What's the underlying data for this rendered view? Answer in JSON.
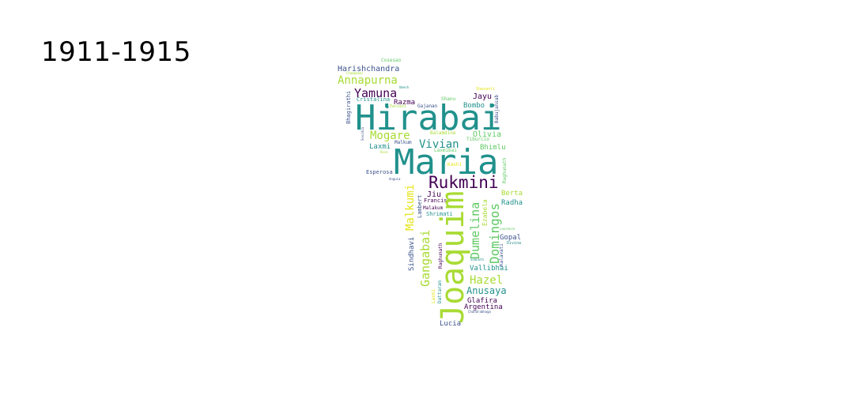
{
  "title": "1911-1915",
  "colors": {
    "dark_purple": "#440154",
    "indigo": "#3b528b",
    "teal": "#21918c",
    "green": "#5ec962",
    "lime": "#a8db34",
    "yellow": "#e5e419"
  },
  "words": [
    {
      "text": "Cosesao",
      "color": "#5ec962"
    },
    {
      "text": "Harishchandra",
      "color": "#3b528b"
    },
    {
      "text": "Champabai",
      "color": "#a8db34"
    },
    {
      "text": "Annapurna",
      "color": "#a8db34"
    },
    {
      "text": "Umesh",
      "color": "#21918c"
    },
    {
      "text": "Yamuna",
      "color": "#440154"
    },
    {
      "text": "Shevanti",
      "color": "#e5e419"
    },
    {
      "text": "Jayu",
      "color": "#440154"
    },
    {
      "text": "Bhagirathi",
      "color": "#3b528b"
    },
    {
      "text": "Cristalina",
      "color": "#21918c"
    },
    {
      "text": "Razma",
      "color": "#440154"
    },
    {
      "text": "Shanu",
      "color": "#5ec962"
    },
    {
      "text": "Parvati",
      "color": "#a8db34"
    },
    {
      "text": "Gajanan",
      "color": "#3b528b"
    },
    {
      "text": "Bombo",
      "color": "#21918c"
    },
    {
      "text": "Babujansab",
      "color": "#3b528b"
    },
    {
      "text": "Hirabai",
      "color": "#21918c"
    },
    {
      "text": "Sosidia",
      "color": "#3b528b"
    },
    {
      "text": "Mogare",
      "color": "#a8db34"
    },
    {
      "text": "Balamdine",
      "color": "#a8db34"
    },
    {
      "text": "Olivia",
      "color": "#5ec962"
    },
    {
      "text": "Malkum",
      "color": "#3b528b"
    },
    {
      "text": "Tiburcio",
      "color": "#5ec962"
    },
    {
      "text": "Laxmi",
      "color": "#21918c"
    },
    {
      "text": "Vivian",
      "color": "#21918c"
    },
    {
      "text": "Laxmibai",
      "color": "#5ec962"
    },
    {
      "text": "Bhimlu",
      "color": "#5ec962"
    },
    {
      "text": "Rosa",
      "color": "#a8db34"
    },
    {
      "text": "Maria",
      "color": "#21918c"
    },
    {
      "text": "Esperosa",
      "color": "#3b528b"
    },
    {
      "text": "Kashi",
      "color": "#e5e419"
    },
    {
      "text": "Raghunath",
      "color": "#5ec962"
    },
    {
      "text": "Anguia",
      "color": "#3b528b"
    },
    {
      "text": "Rukmini",
      "color": "#440154"
    },
    {
      "text": "Berta",
      "color": "#a8db34"
    },
    {
      "text": "Jiu",
      "color": "#440154"
    },
    {
      "text": "Lambert",
      "color": "#3b528b"
    },
    {
      "text": "Malkumi",
      "color": "#e5e419"
    },
    {
      "text": "Francis",
      "color": "#440154"
    },
    {
      "text": "Radha",
      "color": "#21918c"
    },
    {
      "text": "Malakum",
      "color": "#440154"
    },
    {
      "text": "Shrimati",
      "color": "#21918c"
    },
    {
      "text": "Dumelina",
      "color": "#5ec962"
    },
    {
      "text": "Ezabela",
      "color": "#a8db34"
    },
    {
      "text": "Domingos",
      "color": "#5ec962"
    },
    {
      "text": "Joaquim",
      "color": "#a8db34"
    },
    {
      "text": "Gangabai",
      "color": "#a8db34"
    },
    {
      "text": "Sindhavi",
      "color": "#3b528b"
    },
    {
      "text": "Laurence",
      "color": "#5ec962"
    },
    {
      "text": "Gopal",
      "color": "#3b528b"
    },
    {
      "text": "Kalavati",
      "color": "#3b528b"
    },
    {
      "text": "Divina",
      "color": "#21918c"
    },
    {
      "text": "Raghunath",
      "color": "#440154"
    },
    {
      "text": "Somnath",
      "color": "#21918c"
    },
    {
      "text": "Vallibhai",
      "color": "#21918c"
    },
    {
      "text": "Laxmi",
      "color": "#e5e419"
    },
    {
      "text": "Dattaram",
      "color": "#21918c"
    },
    {
      "text": "Hazel",
      "color": "#a8db34"
    },
    {
      "text": "Anusaya",
      "color": "#21918c"
    },
    {
      "text": "Glafira",
      "color": "#440154"
    },
    {
      "text": "Argentina",
      "color": "#440154"
    },
    {
      "text": "Chandrabhaga",
      "color": "#3b528b"
    },
    {
      "text": "Lucia",
      "color": "#3b528b"
    }
  ]
}
